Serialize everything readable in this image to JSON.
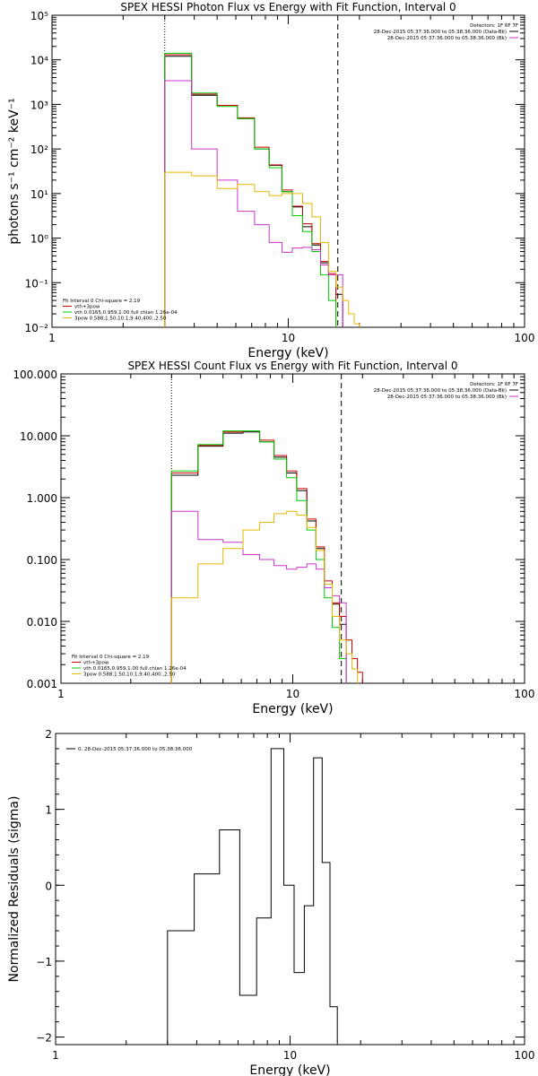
{
  "chart_data": [
    {
      "type": "line",
      "title": "SPEX HESSI Photon Flux vs Energy with Fit Function, Interval 0",
      "xlabel": "Energy (keV)",
      "ylabel": "photons s⁻¹ cm⁻² keV⁻¹",
      "xscale": "log",
      "yscale": "log",
      "xlim": [
        1,
        100
      ],
      "ylim": [
        0.01,
        100000
      ],
      "x_ticks": [
        {
          "value": 1,
          "label": "1"
        },
        {
          "value": 10,
          "label": "10"
        },
        {
          "value": 100,
          "label": "100"
        }
      ],
      "y_ticks": [
        {
          "value": 100000,
          "label": "10⁵"
        },
        {
          "value": 10000,
          "label": "10⁴"
        },
        {
          "value": 1000,
          "label": "10³"
        },
        {
          "value": 100,
          "label": "10²"
        },
        {
          "value": 10,
          "label": "10¹"
        },
        {
          "value": 1,
          "label": "10⁰"
        },
        {
          "value": 0.1,
          "label": "10⁻¹"
        },
        {
          "value": 0.01,
          "label": "10⁻²"
        }
      ],
      "vlines": [
        {
          "x": 3.0,
          "style": "dotted",
          "color": "#000000"
        },
        {
          "x": 16.2,
          "style": "dashed",
          "color": "#000000"
        }
      ],
      "legend_right": {
        "title": "Detectors: 1F 6F 7F",
        "entries": [
          {
            "label": "28-Dec-2015 05:37:36.000 to 05:38:36.000 (Data-Bk)",
            "color": "#000000"
          },
          {
            "label": "28-Dec-2015 05:37:36.000 to 05:38:36.000 (Bk)",
            "color": "#cc33cc"
          }
        ]
      },
      "legend_left": {
        "title": "Fit Interval 0   Chi-square = 2.19",
        "entries": [
          {
            "label": "vth+3pow",
            "color": "#cc0000"
          },
          {
            "label": "vth 0.0165,0.959,1.00  full chian 1.26e-04",
            "color": "#00cc00"
          },
          {
            "label": "3pow 0.588,1.50,10.1,9.40,400.,2.50",
            "color": "#e6b800"
          }
        ]
      },
      "edges": [
        3.0,
        3.9,
        5.0,
        6.1,
        7.2,
        8.3,
        9.4,
        10.4,
        11.5,
        12.6,
        13.7,
        14.8,
        15.9,
        17.0,
        18.0,
        19.0,
        20.0
      ],
      "series": [
        {
          "color": "#000000",
          "values": [
            12000,
            1600,
            950,
            480,
            100,
            43,
            11,
            5,
            1.8,
            0.7,
            0.28,
            0.15,
            0.055,
            null,
            null,
            null
          ]
        },
        {
          "color": "#cc0000",
          "values": [
            13000,
            1700,
            950,
            500,
            110,
            44,
            12,
            5.2,
            2.1,
            0.75,
            0.3,
            0.16,
            null,
            null,
            null,
            null
          ]
        },
        {
          "color": "#00cc00",
          "values": [
            14000,
            1800,
            900,
            480,
            100,
            38,
            11,
            3.2,
            1.4,
            0.5,
            0.15,
            0.04,
            0.005,
            null,
            null,
            null
          ]
        },
        {
          "color": "#cc33cc",
          "values": [
            3400,
            100,
            20,
            4,
            2,
            0.8,
            0.48,
            0.6,
            0.62,
            0.55,
            0.25,
            0.15,
            0.15,
            null,
            null,
            null
          ]
        },
        {
          "color": "#e6b800",
          "values": [
            30,
            25,
            13,
            16,
            11,
            9,
            10,
            10,
            6,
            3,
            0.8,
            0.18,
            0.08,
            0.04,
            0.02,
            0.012
          ]
        }
      ]
    },
    {
      "type": "line",
      "title": "SPEX HESSI Count Flux vs Energy with Fit Function, Interval 0",
      "xlabel": "Energy (keV)",
      "ylabel": "",
      "xscale": "log",
      "yscale": "log",
      "xlim": [
        1,
        100
      ],
      "ylim": [
        0.001,
        100
      ],
      "x_ticks": [
        {
          "value": 1,
          "label": "1"
        },
        {
          "value": 10,
          "label": "10"
        },
        {
          "value": 100,
          "label": "100"
        }
      ],
      "y_ticks": [
        {
          "value": 100,
          "label": "100.000"
        },
        {
          "value": 10,
          "label": "10.000"
        },
        {
          "value": 1,
          "label": "1.000"
        },
        {
          "value": 0.1,
          "label": "0.100"
        },
        {
          "value": 0.01,
          "label": "0.010"
        },
        {
          "value": 0.001,
          "label": "0.001"
        }
      ],
      "vlines": [
        {
          "x": 3.0,
          "style": "dotted",
          "color": "#000000"
        },
        {
          "x": 16.2,
          "style": "dashed",
          "color": "#000000"
        }
      ],
      "legend_right": {
        "title": "Detectors: 1F 6F 7F",
        "entries": [
          {
            "label": "28-Dec-2015 05:37:36.000 to 05:38:36.000 (Data-Bk)",
            "color": "#000000"
          },
          {
            "label": "28-Dec-2015 05:37:36.000 to 05:38:36.000 (Bk)",
            "color": "#cc33cc"
          }
        ]
      },
      "legend_left": {
        "title": "Fit Interval 0   Chi-square = 2.19",
        "entries": [
          {
            "label": "vth+3pow",
            "color": "#cc0000"
          },
          {
            "label": "vth 0.0165,0.959,1.00  full chian 1.26e-04",
            "color": "#00cc00"
          },
          {
            "label": "3pow 0.588,1.50,10.1,9.40,400.,2.50",
            "color": "#e6b800"
          }
        ]
      },
      "edges": [
        3.0,
        3.9,
        5.0,
        6.1,
        7.2,
        8.3,
        9.4,
        10.4,
        11.5,
        12.6,
        13.7,
        14.8,
        15.9,
        17.0,
        18.0,
        19.0,
        20.0
      ],
      "series": [
        {
          "color": "#000000",
          "values": [
            2.3,
            6.8,
            11,
            11.5,
            8,
            4.5,
            2.5,
            1.3,
            0.42,
            0.15,
            0.04,
            0.019,
            0.009,
            null,
            null,
            null
          ]
        },
        {
          "color": "#cc0000",
          "values": [
            2.5,
            7,
            11.5,
            12,
            8.5,
            4.8,
            2.7,
            1.4,
            0.45,
            0.16,
            0.045,
            0.02,
            0.012,
            0.005,
            0.0025,
            0.0015
          ]
        },
        {
          "color": "#00cc00",
          "values": [
            2.7,
            7.2,
            12,
            12,
            8,
            4.2,
            2.1,
            0.9,
            0.3,
            0.1,
            0.024,
            0.008,
            0.0025,
            null,
            null,
            null
          ]
        },
        {
          "color": "#cc33cc",
          "values": [
            0.6,
            0.21,
            0.19,
            0.12,
            0.1,
            0.08,
            0.07,
            0.075,
            0.085,
            0.07,
            0.035,
            0.026,
            0.02,
            null,
            null,
            null
          ]
        },
        {
          "color": "#e6b800",
          "values": [
            0.024,
            0.085,
            0.15,
            0.3,
            0.4,
            0.55,
            0.6,
            0.52,
            0.33,
            0.14,
            0.04,
            0.012,
            0.005,
            0.003,
            0.0017,
            null
          ]
        }
      ]
    },
    {
      "type": "line",
      "title": "",
      "xlabel": "Energy (keV)",
      "ylabel": "Normalized Residuals (sigma)",
      "xscale": "log",
      "yscale": "linear",
      "xlim": [
        1,
        100
      ],
      "ylim": [
        -2.1,
        2
      ],
      "x_ticks": [
        {
          "value": 1,
          "label": "1"
        },
        {
          "value": 10,
          "label": "10"
        },
        {
          "value": 100,
          "label": "100"
        }
      ],
      "y_ticks": [
        {
          "value": 2,
          "label": "2"
        },
        {
          "value": 1,
          "label": "1"
        },
        {
          "value": 0,
          "label": "0"
        },
        {
          "value": -1,
          "label": "−1"
        },
        {
          "value": -2,
          "label": "−2"
        }
      ],
      "legend_left": {
        "title": "",
        "entries": [
          {
            "label": "0. 28-Dec-2015 05:37:36.000 to 05:38:36.000",
            "color": "#000000"
          }
        ]
      },
      "edges": [
        3.0,
        3.9,
        5.0,
        6.1,
        7.2,
        8.3,
        9.4,
        10.4,
        11.5,
        12.6,
        13.7,
        14.8,
        15.9
      ],
      "series": [
        {
          "color": "#000000",
          "values": [
            -0.6,
            0.15,
            0.73,
            -1.45,
            -0.43,
            1.8,
            0.0,
            -1.15,
            -0.27,
            1.68,
            0.3,
            -1.6
          ]
        }
      ]
    }
  ]
}
